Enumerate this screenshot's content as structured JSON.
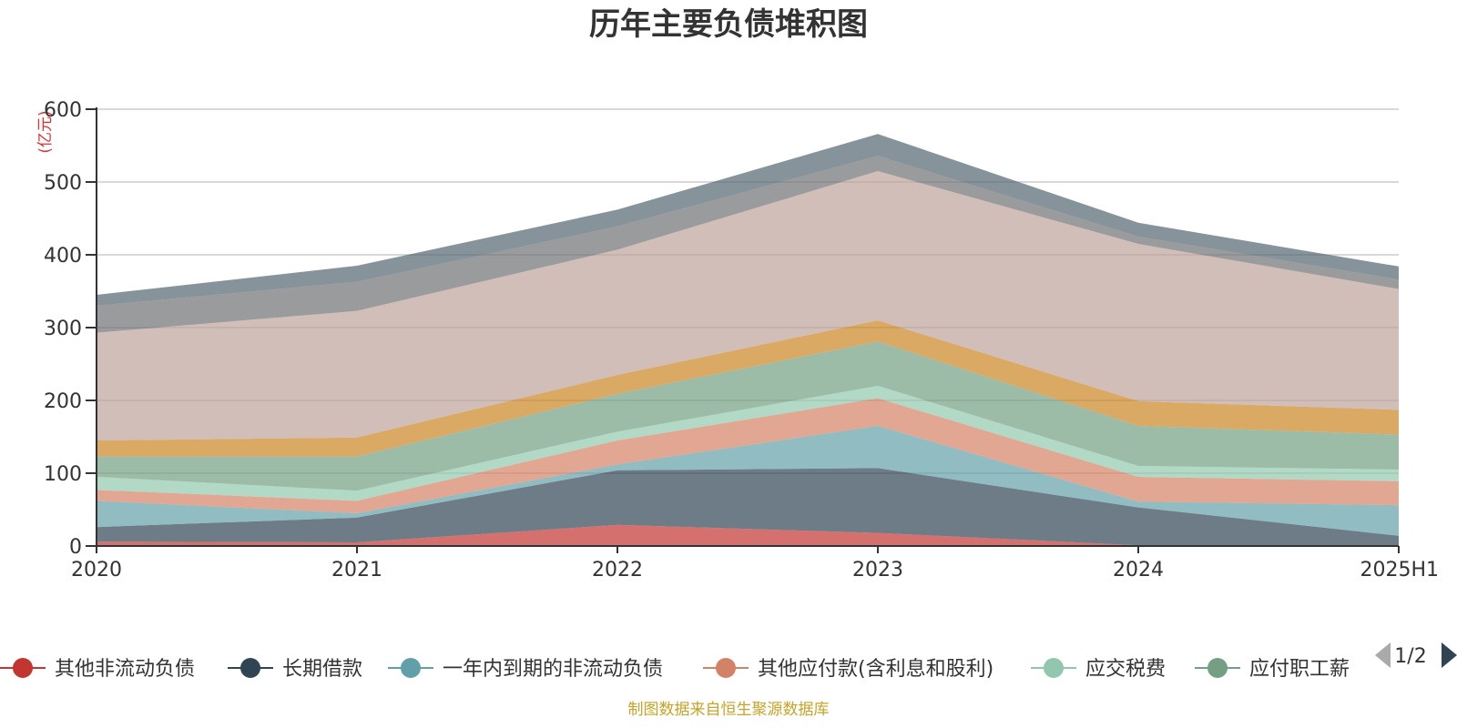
{
  "chart_data": {
    "type": "area",
    "stacked": true,
    "title": "历年主要负债堆积图",
    "unit": "(亿元)",
    "categories": [
      "2020",
      "2021",
      "2022",
      "2023",
      "2024",
      "2025H1"
    ],
    "ylim": [
      0,
      600
    ],
    "yticks": [
      "0",
      "100",
      "200",
      "300",
      "400",
      "500",
      "600"
    ],
    "grid": true,
    "legend_position": "bottom",
    "series": [
      {
        "name": "其他非流动负债",
        "color": "#c23531",
        "values": [
          6,
          5,
          29,
          18,
          1,
          1
        ]
      },
      {
        "name": "长期借款",
        "color": "#2f4554",
        "values": [
          20,
          34,
          75,
          89,
          52,
          13
        ]
      },
      {
        "name": "一年内到期的非流动负债",
        "color": "#61a0a8",
        "values": [
          36,
          6,
          8,
          58,
          8,
          42
        ]
      },
      {
        "name": "其他应付款(含利息和股利)",
        "color": "#d48265",
        "values": [
          15,
          17,
          33,
          38,
          34,
          33
        ]
      },
      {
        "name": "应交税费",
        "color": "#91c7ae",
        "values": [
          18,
          14,
          12,
          17,
          15,
          16
        ]
      },
      {
        "name": "应付职工薪酬",
        "color": "#749f83",
        "values": [
          28,
          47,
          52,
          61,
          55,
          48
        ]
      },
      {
        "name": "",
        "color": "#ca8622",
        "values": [
          22,
          26,
          26,
          29,
          34,
          34
        ]
      },
      {
        "name": "",
        "color": "#bda29a",
        "values": [
          148,
          174,
          172,
          205,
          216,
          166
        ]
      },
      {
        "name": "",
        "color": "#6e7074",
        "values": [
          37,
          40,
          32,
          21,
          10,
          13
        ]
      },
      {
        "name": "",
        "color": "#546570",
        "values": [
          15,
          22,
          23,
          30,
          19,
          18
        ]
      }
    ]
  },
  "legend": {
    "visible_items": [
      "其他非流动负债",
      "长期借款",
      "一年内到期的非流动负债",
      "其他应付款(含利息和股利)",
      "应交税费",
      "应付职工薪"
    ],
    "page_text": "1/2"
  },
  "source_text": "制图数据来自恒生聚源数据库"
}
